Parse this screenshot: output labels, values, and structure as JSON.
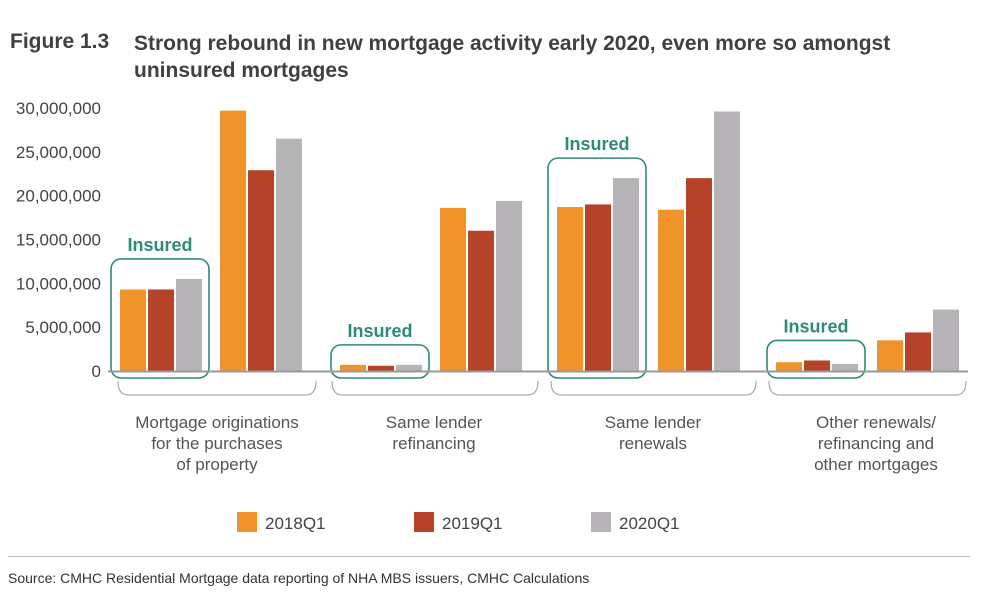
{
  "figure": {
    "label": "Figure 1.3",
    "title": "Strong rebound in new mortgage activity early 2020, even more so amongst uninsured mortgages"
  },
  "source": "Source: CMHC Residential Mortgage data reporting of NHA MBS issuers, CMHC Calculations",
  "colors": {
    "2018Q1": "#f0932b",
    "2019Q1": "#b5432a",
    "2020Q1": "#b6b4b6",
    "insured_box": "#2e8b7a",
    "axis": "#9a9a9a"
  },
  "chart_data": {
    "type": "bar",
    "ylim": [
      0,
      30000000
    ],
    "yticks": [
      "0",
      "5,000,000",
      "10,000,000",
      "15,000,000",
      "20,000,000",
      "25,000,000",
      "30,000,000"
    ],
    "ytick_values": [
      0,
      5000000,
      10000000,
      15000000,
      20000000,
      25000000,
      30000000
    ],
    "annotation": "Insured",
    "legend_position": "bottom",
    "series": [
      {
        "name": "2018Q1",
        "color": "#f0932b"
      },
      {
        "name": "2019Q1",
        "color": "#b5432a"
      },
      {
        "name": "2020Q1",
        "color": "#b6b4b6"
      }
    ],
    "groups": [
      {
        "label_lines": [
          "Mortgage originations",
          "for the purchases",
          "of property"
        ],
        "subgroups": [
          {
            "insured": true,
            "values": [
              9300000,
              9300000,
              10500000
            ]
          },
          {
            "insured": false,
            "values": [
              29700000,
              22900000,
              26500000
            ]
          }
        ]
      },
      {
        "label_lines": [
          "Same lender",
          "refinancing"
        ],
        "subgroups": [
          {
            "insured": true,
            "values": [
              700000,
              600000,
              700000
            ]
          },
          {
            "insured": false,
            "values": [
              18600000,
              16000000,
              19400000
            ]
          }
        ]
      },
      {
        "label_lines": [
          "Same lender",
          "renewals"
        ],
        "subgroups": [
          {
            "insured": true,
            "values": [
              18700000,
              19000000,
              22000000
            ]
          },
          {
            "insured": false,
            "values": [
              18400000,
              22000000,
              29600000
            ]
          }
        ]
      },
      {
        "label_lines": [
          "Other renewals/",
          "refinancing and",
          "other mortgages"
        ],
        "subgroups": [
          {
            "insured": true,
            "values": [
              1000000,
              1200000,
              800000
            ]
          },
          {
            "insured": false,
            "values": [
              3500000,
              4400000,
              7000000
            ]
          }
        ]
      }
    ]
  }
}
